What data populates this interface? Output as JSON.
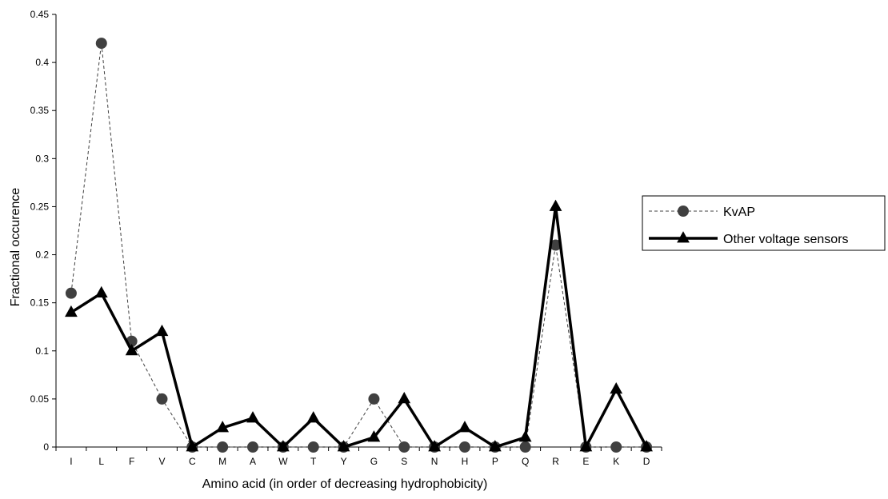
{
  "chart_data": {
    "type": "line",
    "title": "",
    "xlabel": "Amino acid (in order of decreasing hydrophobicity)",
    "ylabel": "Fractional occurence",
    "categories": [
      "I",
      "L",
      "F",
      "V",
      "C",
      "M",
      "A",
      "W",
      "T",
      "Y",
      "G",
      "S",
      "N",
      "H",
      "P",
      "Q",
      "R",
      "E",
      "K",
      "D"
    ],
    "ylim": [
      0,
      0.45
    ],
    "yticks": [
      0,
      0.05,
      0.1,
      0.15,
      0.2,
      0.25,
      0.3,
      0.35,
      0.4,
      0.45
    ],
    "ytick_labels": [
      "0",
      "0.05",
      "0.1",
      "0.15",
      "0.2",
      "0.25",
      "0.3",
      "0.35",
      "0.4",
      "0.45"
    ],
    "grid": false,
    "legend_position": "right",
    "series": [
      {
        "name": "KvAP",
        "marker": "circle",
        "line_style": "dashed",
        "color": "#404040",
        "values": [
          0.16,
          0.42,
          0.11,
          0.05,
          0,
          0,
          0,
          0,
          0,
          0,
          0.05,
          0,
          0,
          0,
          0,
          0,
          0.21,
          0,
          0,
          0
        ]
      },
      {
        "name": "Other voltage sensors",
        "marker": "triangle",
        "line_style": "solid",
        "color": "#000000",
        "values": [
          0.14,
          0.16,
          0.1,
          0.12,
          0,
          0.02,
          0.03,
          0,
          0.03,
          0,
          0.01,
          0.05,
          0,
          0.02,
          0,
          0.01,
          0.25,
          0,
          0.06,
          0
        ]
      }
    ]
  }
}
